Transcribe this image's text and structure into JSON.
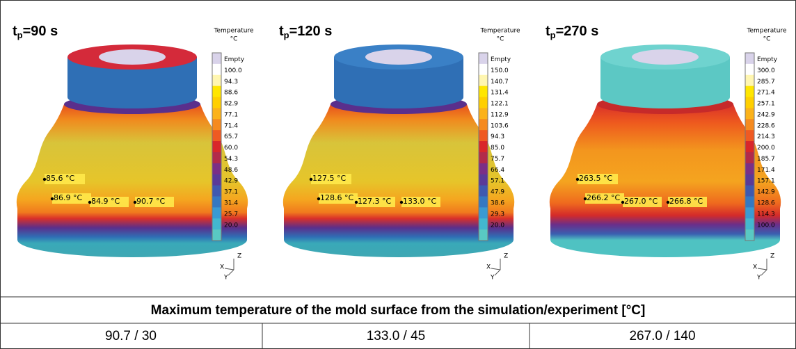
{
  "panels": [
    {
      "title": {
        "main": "t",
        "sub": "p",
        "rest": "=90 s"
      },
      "legend": {
        "title": "Temperature",
        "unit": "°C",
        "labels": [
          "Empty",
          "100.0",
          "94.3",
          "88.6",
          "82.9",
          "77.1",
          "71.4",
          "65.7",
          "60.0",
          "54.3",
          "48.6",
          "42.9",
          "37.1",
          "31.4",
          "25.7",
          "20.0"
        ]
      },
      "probes": [
        "85.6 °C",
        "86.9 °C",
        "84.9 °C",
        "90.7 °C"
      ],
      "axes": [
        "Z",
        "X",
        "Y"
      ]
    },
    {
      "title": {
        "main": "t",
        "sub": "p",
        "rest": "=120 s"
      },
      "legend": {
        "title": "Temperature",
        "unit": "°C",
        "labels": [
          "Empty",
          "150.0",
          "140.7",
          "131.4",
          "122.1",
          "112.9",
          "103.6",
          "94.3",
          "85.0",
          "75.7",
          "66.4",
          "57.1",
          "47.9",
          "38.6",
          "29.3",
          "20.0"
        ]
      },
      "probes": [
        "127.5 °C",
        "128.6 °C",
        "127.3 °C",
        "133.0 °C"
      ],
      "axes": [
        "Z",
        "X",
        "Y"
      ]
    },
    {
      "title": {
        "main": "t",
        "sub": "p",
        "rest": "=270 s"
      },
      "legend": {
        "title": "Temperature",
        "unit": "°C",
        "labels": [
          "Empty",
          "300.0",
          "285.7",
          "271.4",
          "257.1",
          "242.9",
          "228.6",
          "214.3",
          "200.0",
          "185.7",
          "171.4",
          "157.1",
          "142.9",
          "128.6",
          "114.3",
          "100.0"
        ]
      },
      "probes": [
        "263.5 °C",
        "266.2 °C",
        "267.0 °C",
        "266.8 °C"
      ],
      "axes": [
        "Z",
        "X",
        "Y"
      ]
    }
  ],
  "table": {
    "header": "Maximum temperature of the mold surface from the simulation/experiment [°C]",
    "rows": [
      [
        "90.7 / 30",
        "133.0 / 45",
        "267.0 / 140"
      ]
    ]
  }
}
